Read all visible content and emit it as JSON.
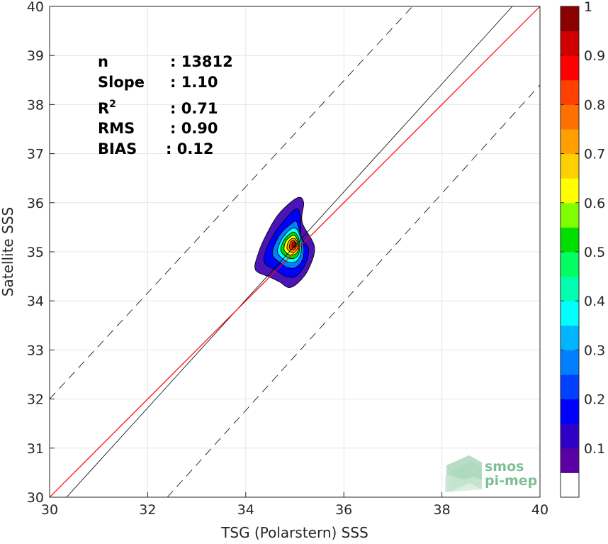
{
  "chart_data": {
    "type": "contour",
    "xlabel": "TSG (Polarstern) SSS",
    "ylabel": "Satellite SSS",
    "xlim": [
      30,
      40
    ],
    "ylim": [
      30,
      40
    ],
    "xticks": [
      "30",
      "32",
      "34",
      "36",
      "38",
      "40"
    ],
    "yticks": [
      "30",
      "31",
      "32",
      "33",
      "34",
      "35",
      "36",
      "37",
      "38",
      "39",
      "40"
    ],
    "grid": true,
    "stats": [
      {
        "label": "n",
        "value": ": 13812"
      },
      {
        "label": "Slope",
        "value": ": 1.10"
      },
      {
        "label": "R",
        "sup": "2",
        "value": ": 0.71"
      },
      {
        "label": "RMS",
        "value": ": 0.90"
      },
      {
        "label": "BIAS",
        "value": ": 0.12"
      }
    ],
    "lines": {
      "identity": {
        "color": "#ff0000",
        "points": [
          [
            30,
            30
          ],
          [
            40,
            40
          ]
        ]
      },
      "regression": {
        "color": "#000000",
        "slope": 1.1,
        "intercept": -3.38
      },
      "offset_upper": {
        "style": "dashed",
        "points": [
          [
            30,
            32
          ],
          [
            37.4,
            40
          ]
        ]
      },
      "offset_lower": {
        "style": "dashed",
        "points": [
          [
            32.4,
            30
          ],
          [
            40,
            38.4
          ]
        ]
      }
    },
    "density_peak": {
      "x": 35.0,
      "y": 35.15
    },
    "colorbar": {
      "min": 0,
      "max": 1,
      "ticks": [
        "0.1",
        "0.2",
        "0.3",
        "0.4",
        "0.5",
        "0.6",
        "0.7",
        "0.8",
        "0.9",
        "1"
      ],
      "levels": [
        "#ffffff",
        "#5b00a3",
        "#2e00c8",
        "#0000ff",
        "#0040ff",
        "#0080ff",
        "#00b4ff",
        "#00ffff",
        "#00ffb0",
        "#00ff60",
        "#00e000",
        "#80ff00",
        "#ffff00",
        "#ffd000",
        "#ffa000",
        "#ff7000",
        "#ff4000",
        "#ff0000",
        "#d00000",
        "#8b0000"
      ]
    },
    "contours": [
      {
        "level": 0.05,
        "color": "#4b14b8",
        "points": [
          [
            34.2,
            34.63
          ],
          [
            34.25,
            34.95
          ],
          [
            34.42,
            35.35
          ],
          [
            34.68,
            35.78
          ],
          [
            35.05,
            36.1
          ],
          [
            35.18,
            36.0
          ],
          [
            35.15,
            35.6
          ],
          [
            35.4,
            35.1
          ],
          [
            35.28,
            34.65
          ],
          [
            35.08,
            34.38
          ],
          [
            34.88,
            34.27
          ],
          [
            34.7,
            34.38
          ],
          [
            34.5,
            34.48
          ]
        ]
      },
      {
        "level": 0.1,
        "color": "#0000ff",
        "points": [
          [
            34.38,
            34.78
          ],
          [
            34.42,
            35.05
          ],
          [
            34.6,
            35.4
          ],
          [
            34.82,
            35.68
          ],
          [
            35.05,
            35.88
          ],
          [
            35.12,
            35.6
          ],
          [
            35.13,
            35.3
          ],
          [
            35.28,
            35.05
          ],
          [
            35.2,
            34.72
          ],
          [
            35.02,
            34.5
          ],
          [
            34.82,
            34.5
          ],
          [
            34.62,
            34.62
          ]
        ]
      },
      {
        "level": 0.3,
        "color": "#0080ff",
        "points": [
          [
            34.55,
            34.92
          ],
          [
            34.58,
            35.12
          ],
          [
            34.72,
            35.38
          ],
          [
            34.9,
            35.55
          ],
          [
            35.03,
            35.62
          ],
          [
            35.1,
            35.4
          ],
          [
            35.18,
            35.12
          ],
          [
            35.16,
            34.85
          ],
          [
            35.02,
            34.68
          ],
          [
            34.85,
            34.68
          ],
          [
            34.7,
            34.78
          ]
        ]
      },
      {
        "level": 0.45,
        "color": "#00ffff",
        "points": [
          [
            34.65,
            34.98
          ],
          [
            34.68,
            35.15
          ],
          [
            34.8,
            35.35
          ],
          [
            34.95,
            35.48
          ],
          [
            35.05,
            35.45
          ],
          [
            35.12,
            35.25
          ],
          [
            35.13,
            35.0
          ],
          [
            35.05,
            34.82
          ],
          [
            34.9,
            34.78
          ],
          [
            34.75,
            34.86
          ]
        ]
      },
      {
        "level": 0.55,
        "color": "#00e000",
        "points": [
          [
            34.72,
            35.02
          ],
          [
            34.75,
            35.18
          ],
          [
            34.86,
            35.33
          ],
          [
            34.98,
            35.4
          ],
          [
            35.07,
            35.3
          ],
          [
            35.1,
            35.1
          ],
          [
            35.06,
            34.92
          ],
          [
            34.93,
            34.86
          ],
          [
            34.8,
            34.92
          ]
        ]
      },
      {
        "level": 0.65,
        "color": "#ffff00",
        "points": [
          [
            34.78,
            35.05
          ],
          [
            34.81,
            35.2
          ],
          [
            34.9,
            35.3
          ],
          [
            35.0,
            35.33
          ],
          [
            35.06,
            35.22
          ],
          [
            35.08,
            35.08
          ],
          [
            35.03,
            34.97
          ],
          [
            34.93,
            34.93
          ],
          [
            34.84,
            34.97
          ]
        ]
      },
      {
        "level": 0.75,
        "color": "#ffa000",
        "points": [
          [
            34.84,
            35.08
          ],
          [
            34.87,
            35.2
          ],
          [
            34.95,
            35.27
          ],
          [
            35.02,
            35.25
          ],
          [
            35.06,
            35.13
          ],
          [
            35.03,
            35.02
          ],
          [
            34.95,
            34.99
          ],
          [
            34.88,
            35.02
          ]
        ]
      },
      {
        "level": 0.85,
        "color": "#ff4000",
        "points": [
          [
            34.89,
            35.1
          ],
          [
            34.92,
            35.2
          ],
          [
            34.98,
            35.23
          ],
          [
            35.03,
            35.16
          ],
          [
            35.02,
            35.07
          ],
          [
            34.96,
            35.04
          ],
          [
            34.91,
            35.05
          ]
        ]
      },
      {
        "level": 0.95,
        "color": "#c80000",
        "points": [
          [
            34.94,
            35.12
          ],
          [
            34.96,
            35.19
          ],
          [
            35.0,
            35.2
          ],
          [
            35.02,
            35.14
          ],
          [
            34.99,
            35.09
          ],
          [
            34.95,
            35.09
          ]
        ]
      }
    ],
    "watermark": [
      "smos",
      "pi-mep"
    ]
  }
}
